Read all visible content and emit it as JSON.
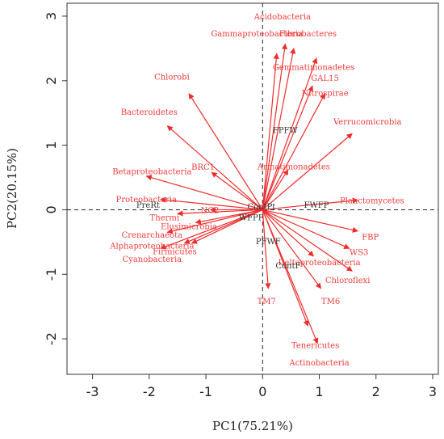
{
  "chart_data": {
    "type": "biplot",
    "xlabel": "PC1(75.21%)",
    "ylabel": "PC2(20.15%)",
    "xlim": [
      -3.45,
      3.1
    ],
    "ylim": [
      -2.55,
      3.2
    ],
    "x_ticks": [
      -3,
      -2,
      -1,
      0,
      1,
      2,
      3
    ],
    "y_ticks": [
      -2,
      -1,
      0,
      1,
      2,
      3
    ],
    "x_tick_labels": [
      "-3",
      "-2",
      "-1",
      "0",
      "1",
      "2",
      "3"
    ],
    "y_tick_labels": [
      "-2",
      "-1",
      "0",
      "1",
      "2",
      "3"
    ],
    "reference_lines": {
      "x": 0,
      "y": 0,
      "style": "dashed"
    },
    "arrow_color": "#ef2b2b",
    "species_label_color": "#ef3b3b",
    "site_label_color": "#333333",
    "species": [
      {
        "name": "Acidobacteria",
        "x": 0.4,
        "y": 2.57,
        "lx": 0.35,
        "ly": 2.98
      },
      {
        "name": "Gammaproteobacteria",
        "x": 0.25,
        "y": 2.42,
        "lx": -0.1,
        "ly": 2.72
      },
      {
        "name": "Fibrobacteres",
        "x": 0.55,
        "y": 2.5,
        "lx": 0.8,
        "ly": 2.72
      },
      {
        "name": "Gemmatimonadetes",
        "x": 0.95,
        "y": 2.35,
        "lx": 0.9,
        "ly": 2.2
      },
      {
        "name": "GAL15",
        "x": 0.88,
        "y": 1.92,
        "lx": 1.1,
        "ly": 2.03
      },
      {
        "name": "Nitrospirae",
        "x": 1.1,
        "y": 1.8,
        "lx": 1.1,
        "ly": 1.8
      },
      {
        "name": "Verrucomicrobia",
        "x": 1.58,
        "y": 1.18,
        "lx": 1.85,
        "ly": 1.35
      },
      {
        "name": "Chlorobi",
        "x": -1.3,
        "y": 1.8,
        "lx": -1.6,
        "ly": 2.05
      },
      {
        "name": "Bacteroidetes",
        "x": -1.68,
        "y": 1.3,
        "lx": -2.0,
        "ly": 1.5
      },
      {
        "name": "BRC1",
        "x": -0.9,
        "y": 0.58,
        "lx": -1.05,
        "ly": 0.65
      },
      {
        "name": "Armatimonadetes",
        "x": 0.45,
        "y": 0.62,
        "lx": 0.55,
        "ly": 0.66
      },
      {
        "name": "Betaproteobacteria",
        "x": -2.05,
        "y": 0.52,
        "lx": -1.95,
        "ly": 0.58
      },
      {
        "name": "Planctomycetes",
        "x": 1.68,
        "y": 0.15,
        "lx": 1.93,
        "ly": 0.13
      },
      {
        "name": "Proteobacteria",
        "x": -1.8,
        "y": 0.16,
        "lx": -2.05,
        "ly": 0.15
      },
      {
        "name": "NC2",
        "x": -0.92,
        "y": 0.0,
        "lx": -0.93,
        "ly": -0.02
      },
      {
        "name": "Thermi",
        "x": -1.5,
        "y": -0.06,
        "lx": -1.73,
        "ly": -0.13
      },
      {
        "name": "Elusimicrobia",
        "x": -1.18,
        "y": -0.2,
        "lx": -1.3,
        "ly": -0.27
      },
      {
        "name": "Crenarchaeota",
        "x": -1.68,
        "y": -0.35,
        "lx": -1.95,
        "ly": -0.4
      },
      {
        "name": "Alphaproteobacteria",
        "x": -1.38,
        "y": -0.52,
        "lx": -1.95,
        "ly": -0.57
      },
      {
        "name": "Firmicutes",
        "x": -1.25,
        "y": -0.52,
        "lx": -1.55,
        "ly": -0.66
      },
      {
        "name": "Cyanobacteria",
        "x": -1.8,
        "y": -0.6,
        "lx": -1.95,
        "ly": -0.78
      },
      {
        "name": "FBP",
        "x": 1.68,
        "y": -0.33,
        "lx": 1.9,
        "ly": -0.43
      },
      {
        "name": "WS3",
        "x": 1.53,
        "y": -0.6,
        "lx": 1.7,
        "ly": -0.67
      },
      {
        "name": "Deltaproteobacteria",
        "x": 0.9,
        "y": -0.72,
        "lx": 1.0,
        "ly": -0.83
      },
      {
        "name": "Chloroflexi",
        "x": 1.58,
        "y": -0.95,
        "lx": 1.5,
        "ly": -1.1
      },
      {
        "name": "TM7",
        "x": 0.1,
        "y": -1.22,
        "lx": 0.07,
        "ly": -1.43
      },
      {
        "name": "TM6",
        "x": 1.03,
        "y": -1.22,
        "lx": 1.2,
        "ly": -1.43
      },
      {
        "name": "Tenericutes",
        "x": 0.8,
        "y": -1.8,
        "lx": 0.93,
        "ly": -2.11
      },
      {
        "name": "Actinobacteria",
        "x": 0.97,
        "y": -2.07,
        "lx": 1.0,
        "ly": -2.38
      }
    ],
    "sites": [
      {
        "name": "FPFW",
        "x": 0.4,
        "y": 1.22
      },
      {
        "name": "FWFP",
        "x": 0.95,
        "y": 0.06
      },
      {
        "name": "PreRt",
        "x": -2.02,
        "y": 0.06
      },
      {
        "name": "ContPt",
        "x": -0.02,
        "y": 0.04
      },
      {
        "name": "WFPF",
        "x": -0.2,
        "y": -0.13
      },
      {
        "name": "PFWF",
        "x": 0.1,
        "y": -0.5
      },
      {
        "name": "ContF",
        "x": 0.45,
        "y": -0.88
      }
    ]
  }
}
